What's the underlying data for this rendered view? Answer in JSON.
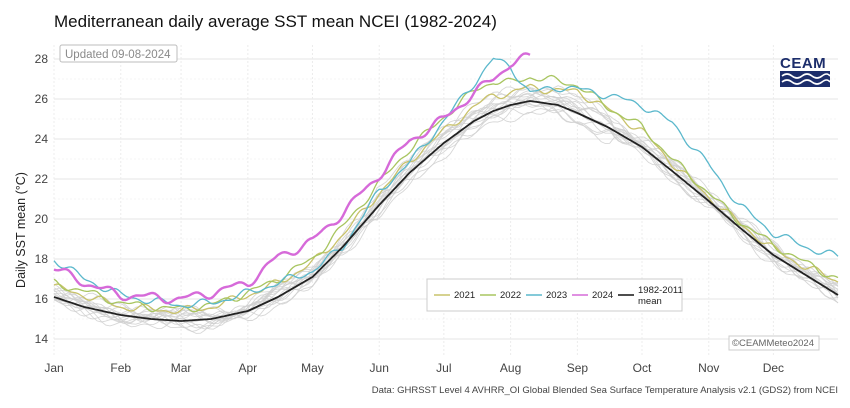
{
  "chart_data": {
    "type": "line",
    "title": "Mediterranean daily average SST mean NCEI (1982-2024)",
    "ylabel": "Daily SST mean (°C)",
    "xlabel": "",
    "x_ticks": [
      "Jan",
      "Feb",
      "Mar",
      "Apr",
      "May",
      "Jun",
      "Jul",
      "Aug",
      "Sep",
      "Oct",
      "Nov",
      "Dec"
    ],
    "y_ticks": [
      14,
      16,
      18,
      20,
      22,
      24,
      26,
      28
    ],
    "ylim": [
      13.2,
      28.7
    ],
    "xlim_day_of_year": [
      1,
      365
    ],
    "grid": true,
    "legend_position": "bottom-center",
    "updated_label": "Updated 09-08-2024",
    "copyright": "©CEAMMeteo2024",
    "source": "Data: GHRSST Level 4 AVHRR_OI Global Blended Sea Surface Temperature Analysis v2.1 (GDS2) from NCEI",
    "logo_text": "CEAM",
    "background_years_color": "#d0d0d0",
    "series": [
      {
        "name": "2021",
        "color": "#c9c26a",
        "x": [
          1,
          15,
          32,
          46,
          60,
          74,
          91,
          105,
          121,
          135,
          152,
          166,
          182,
          196,
          205,
          213,
          222,
          235,
          244,
          258,
          274,
          288,
          305,
          319,
          335,
          350,
          365
        ],
        "values": [
          16.6,
          16.2,
          15.6,
          15.5,
          15.4,
          15.6,
          16.2,
          16.8,
          17.8,
          19.2,
          21.3,
          22.9,
          24.4,
          25.6,
          26.2,
          26.3,
          26.6,
          26.4,
          26.4,
          25.5,
          24.4,
          22.8,
          21.1,
          19.8,
          18.5,
          17.6,
          16.9
        ]
      },
      {
        "name": "2022",
        "color": "#a8c560",
        "x": [
          1,
          15,
          32,
          46,
          60,
          74,
          91,
          105,
          121,
          135,
          152,
          166,
          182,
          196,
          205,
          213,
          222,
          235,
          244,
          258,
          274,
          288,
          305,
          319,
          335,
          350,
          365
        ],
        "values": [
          16.8,
          16.4,
          15.8,
          15.6,
          15.5,
          15.7,
          16.3,
          17.0,
          18.0,
          19.6,
          21.8,
          23.5,
          25.1,
          26.4,
          26.9,
          26.8,
          27.1,
          26.9,
          26.7,
          25.6,
          24.6,
          23.0,
          21.3,
          19.9,
          18.7,
          17.8,
          17.0
        ]
      },
      {
        "name": "2023",
        "color": "#5bb8cc",
        "x": [
          1,
          15,
          32,
          46,
          60,
          74,
          91,
          105,
          121,
          135,
          152,
          166,
          182,
          196,
          205,
          213,
          222,
          235,
          244,
          258,
          274,
          288,
          305,
          319,
          335,
          350,
          365
        ],
        "values": [
          18.0,
          17.0,
          16.2,
          15.9,
          15.7,
          15.8,
          16.3,
          16.8,
          17.4,
          18.6,
          21.4,
          22.8,
          24.9,
          26.8,
          28.0,
          27.6,
          26.3,
          26.6,
          26.5,
          26.2,
          25.7,
          24.8,
          22.7,
          20.7,
          19.3,
          18.6,
          18.1
        ]
      },
      {
        "name": "2024",
        "color": "#d66ad9",
        "x": [
          1,
          10,
          20,
          32,
          46,
          60,
          74,
          91,
          105,
          121,
          135,
          152,
          166,
          182,
          196,
          205,
          213,
          222
        ],
        "values": [
          17.5,
          17.1,
          16.6,
          16.2,
          16.1,
          16.0,
          16.3,
          16.8,
          18.1,
          18.9,
          20.3,
          22.2,
          23.9,
          25.0,
          26.3,
          27.0,
          27.8,
          28.1
        ]
      },
      {
        "name": "1982-2011 mean",
        "color": "#222222",
        "x": [
          1,
          15,
          32,
          46,
          60,
          74,
          91,
          105,
          121,
          135,
          152,
          166,
          182,
          196,
          205,
          213,
          222,
          235,
          244,
          258,
          274,
          288,
          305,
          319,
          335,
          350,
          365
        ],
        "values": [
          16.1,
          15.6,
          15.2,
          15.0,
          14.9,
          15.0,
          15.4,
          16.1,
          17.1,
          18.6,
          20.7,
          22.3,
          23.8,
          24.9,
          25.4,
          25.7,
          25.9,
          25.7,
          25.3,
          24.6,
          23.6,
          22.4,
          20.9,
          19.6,
          18.2,
          17.2,
          16.2
        ]
      }
    ]
  }
}
